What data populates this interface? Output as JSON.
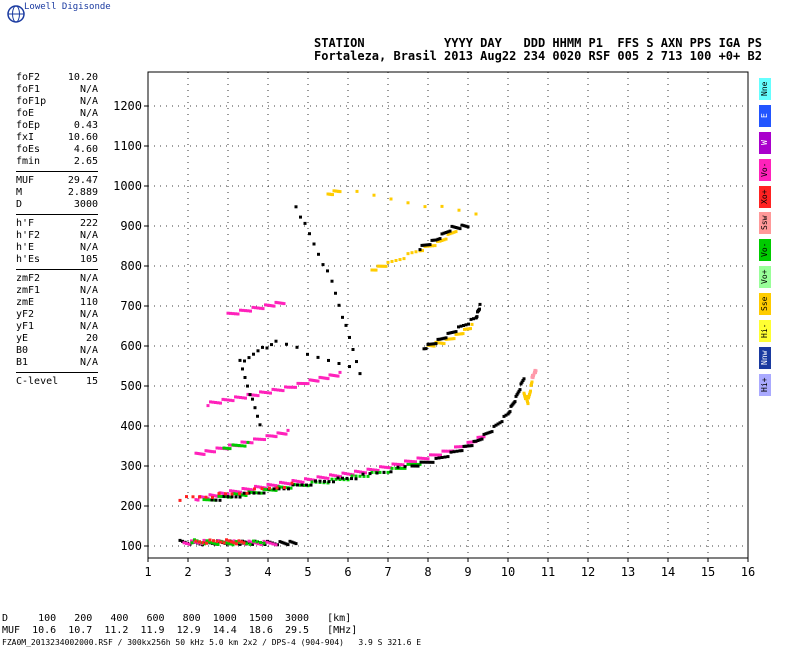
{
  "brand": "Lowell Digisonde",
  "header": {
    "line1": "STATION           YYYY DAY   DDD HHMM P1  FFS S AXN PPS IGA PS",
    "line2": "Fortaleza, Brasil 2013 Aug22 234 0020 RSF 005 2 713 100 +0+ B2"
  },
  "params": [
    {
      "group": [
        {
          "label": "foF2",
          "value": "10.20"
        },
        {
          "label": "foF1",
          "value": "N/A"
        },
        {
          "label": "foF1p",
          "value": "N/A"
        },
        {
          "label": "foE",
          "value": "N/A"
        },
        {
          "label": "foEp",
          "value": "0.43"
        },
        {
          "label": "fxI",
          "value": "10.60"
        },
        {
          "label": "foEs",
          "value": "4.60"
        },
        {
          "label": "fmin",
          "value": "2.65"
        }
      ]
    },
    {
      "group": [
        {
          "label": "MUF",
          "value": "29.47"
        },
        {
          "label": "M",
          "value": "2.889"
        },
        {
          "label": "D",
          "value": "3000"
        }
      ]
    },
    {
      "group": [
        {
          "label": "h'F",
          "value": "222"
        },
        {
          "label": "h'F2",
          "value": "N/A"
        },
        {
          "label": "h'E",
          "value": "N/A"
        },
        {
          "label": "h'Es",
          "value": "105"
        }
      ]
    },
    {
      "group": [
        {
          "label": "zmF2",
          "value": "N/A"
        },
        {
          "label": "zmF1",
          "value": "N/A"
        },
        {
          "label": "zmE",
          "value": "110"
        },
        {
          "label": "yF2",
          "value": "N/A"
        },
        {
          "label": "yF1",
          "value": "N/A"
        },
        {
          "label": "yE",
          "value": "20"
        },
        {
          "label": "B0",
          "value": "N/A"
        },
        {
          "label": "B1",
          "value": "N/A"
        }
      ]
    },
    {
      "group": [
        {
          "label": "C-level",
          "value": "15"
        }
      ]
    }
  ],
  "legend": [
    {
      "label": "Nne",
      "color": "#66ffff"
    },
    {
      "label": "E",
      "color": "#2255ff"
    },
    {
      "label": "W",
      "color": "#aa00cc"
    },
    {
      "label": "Vo-",
      "color": "#ff22bb"
    },
    {
      "label": "Xo+",
      "color": "#ff2222"
    },
    {
      "label": "Ssw",
      "color": "#ff9999"
    },
    {
      "label": "Vo-",
      "color": "#00cc00"
    },
    {
      "label": "Vo+",
      "color": "#99ff99"
    },
    {
      "label": "Sse",
      "color": "#ffcc00"
    },
    {
      "label": "Hi-",
      "color": "#ffff33"
    },
    {
      "label": "Nnw",
      "color": "#1a3aa0"
    },
    {
      "label": "Hi+",
      "color": "#aaaaff"
    }
  ],
  "bottom": {
    "row1": "D     100   200   400   600   800  1000  1500  3000   [km]",
    "row2": "MUF  10.6  10.7  11.2  11.9  12.9  14.4  18.6  29.5   [MHz]",
    "footer": "FZA0M_2013234002000.RSF / 300kx256h 50 kHz 5.0 km 2x2 / DPS-4 (904-904)   3.9 S 321.6 E"
  },
  "chart_data": {
    "type": "scatter",
    "x_ticks": [
      "1",
      "2",
      "3",
      "4",
      "5",
      "6",
      "7",
      "8",
      "9",
      "10",
      "11",
      "12",
      "13",
      "14",
      "15",
      "16"
    ],
    "y_ticks": [
      "100",
      "200",
      "300",
      "400",
      "500",
      "600",
      "700",
      "800",
      "900",
      "1000",
      "1100",
      "1200"
    ],
    "xlim": [
      1,
      16
    ],
    "ylim": [
      70,
      1285
    ],
    "grid": true,
    "series": [
      {
        "color": "#000000",
        "points": [
          [
            1.8,
            110
          ],
          [
            2.3,
            107
          ],
          [
            2.8,
            109
          ],
          [
            3.3,
            108
          ],
          [
            3.8,
            108
          ],
          [
            4.3,
            107
          ],
          [
            4.7,
            108
          ]
        ]
      },
      {
        "color": "#ff22bb",
        "points": [
          [
            1.9,
            108
          ],
          [
            2.4,
            110
          ],
          [
            3,
            109
          ],
          [
            3.6,
            108
          ],
          [
            4.2,
            107
          ]
        ]
      },
      {
        "color": "#00cc00",
        "points": [
          [
            2.1,
            112
          ],
          [
            2.6,
            108
          ],
          [
            3.2,
            107
          ],
          [
            3.9,
            109
          ]
        ]
      },
      {
        "color": "#ff2222",
        "points": [
          [
            2.2,
            110
          ],
          [
            2.9,
            112
          ],
          [
            3.4,
            108
          ]
        ]
      },
      {
        "color": "#ff22bb",
        "points": [
          [
            2.2,
            218
          ],
          [
            2.6,
            225
          ],
          [
            3,
            233
          ],
          [
            3.5,
            242
          ],
          [
            4,
            250
          ],
          [
            4.5,
            258
          ],
          [
            5,
            265
          ],
          [
            5.5,
            273
          ],
          [
            6,
            280
          ],
          [
            6.5,
            288
          ],
          [
            7,
            298
          ],
          [
            7.5,
            310
          ],
          [
            8,
            322
          ],
          [
            8.5,
            337
          ],
          [
            9,
            355
          ],
          [
            9.4,
            375
          ]
        ]
      },
      {
        "color": "#00cc00",
        "points": [
          [
            2.4,
            212
          ],
          [
            3,
            225
          ],
          [
            3.6,
            232
          ],
          [
            4.2,
            243
          ],
          [
            4.8,
            252
          ],
          [
            5.6,
            263
          ],
          [
            6.4,
            276
          ],
          [
            7.2,
            292
          ],
          [
            7.8,
            308
          ]
        ]
      },
      {
        "color": "#000000",
        "points": [
          [
            2.6,
            215
          ],
          [
            3.4,
            228
          ],
          [
            4.4,
            245
          ],
          [
            5.3,
            260
          ],
          [
            6.2,
            272
          ],
          [
            7.6,
            300
          ],
          [
            8.2,
            315
          ],
          [
            8.8,
            340
          ],
          [
            9.2,
            360
          ],
          [
            9.6,
            390
          ],
          [
            10,
            430
          ],
          [
            10.2,
            470
          ],
          [
            10.4,
            520
          ]
        ]
      },
      {
        "color": "#ff2222",
        "points": [
          [
            1.8,
            218
          ],
          [
            3.1,
            230
          ],
          [
            4.6,
            253
          ]
        ]
      },
      {
        "color": "#ffcc00",
        "points": [
          [
            10.4,
            480
          ],
          [
            10.5,
            460
          ],
          [
            10.6,
            510
          ]
        ]
      },
      {
        "color": "#ff99aa",
        "points": [
          [
            10.7,
            540
          ],
          [
            10.6,
            520
          ]
        ]
      },
      {
        "color": "#ff22bb",
        "points": [
          [
            2.2,
            328
          ],
          [
            2.6,
            338
          ],
          [
            3.1,
            350
          ],
          [
            3.6,
            362
          ],
          [
            4.1,
            375
          ],
          [
            4.5,
            385
          ]
        ]
      },
      {
        "color": "#00cc00",
        "points": [
          [
            2.9,
            345
          ],
          [
            3.5,
            355
          ]
        ]
      },
      {
        "color": "#ff22bb",
        "points": [
          [
            2.5,
            455
          ],
          [
            3,
            465
          ],
          [
            3.5,
            475
          ],
          [
            4,
            485
          ],
          [
            4.5,
            495
          ],
          [
            5,
            510
          ],
          [
            5.4,
            520
          ],
          [
            5.8,
            530
          ]
        ]
      },
      {
        "color": "#ffcc00",
        "points": [
          [
            8,
            600
          ],
          [
            8.4,
            610
          ],
          [
            8.8,
            630
          ],
          [
            9.1,
            650
          ]
        ]
      },
      {
        "color": "#000000",
        "points": [
          [
            7.9,
            595
          ],
          [
            8.3,
            615
          ],
          [
            8.7,
            640
          ],
          [
            9.2,
            670
          ],
          [
            9.3,
            700
          ]
        ]
      },
      {
        "color": "#ff22bb",
        "points": [
          [
            3,
            678
          ],
          [
            3.5,
            690
          ],
          [
            4,
            700
          ],
          [
            4.4,
            710
          ]
        ]
      },
      {
        "color": "#ffcc00",
        "points": [
          [
            6.6,
            790
          ],
          [
            7,
            805
          ],
          [
            7.8,
            840
          ],
          [
            8.3,
            860
          ],
          [
            8.7,
            890
          ]
        ]
      },
      {
        "color": "#000000",
        "points": [
          [
            7.8,
            845
          ],
          [
            8.2,
            865
          ],
          [
            8.6,
            895
          ],
          [
            9,
            900
          ]
        ]
      },
      {
        "color": "#ffcc00",
        "points": [
          [
            5.5,
            978
          ],
          [
            5.8,
            990
          ],
          [
            9.2,
            930
          ]
        ]
      },
      {
        "color": "#000000",
        "points": [
          [
            4.7,
            950
          ],
          [
            5.6,
            760
          ],
          [
            6.3,
            535
          ],
          [
            4.2,
            612
          ],
          [
            3.3,
            560
          ],
          [
            3.8,
            405
          ]
        ]
      }
    ]
  }
}
